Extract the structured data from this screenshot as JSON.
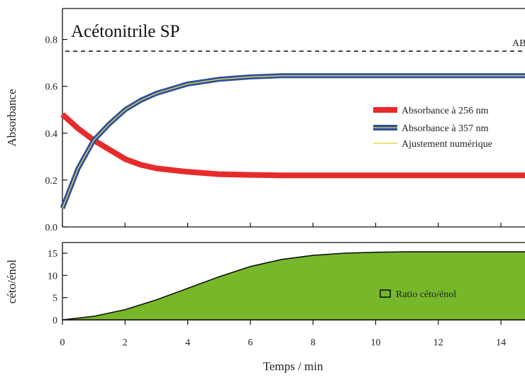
{
  "colors": {
    "red_series": "#e52b2b",
    "blue_series": "#2c4f9e",
    "fit_line": "#e8d84a",
    "area_fill": "#77b82a",
    "axis": "#111111"
  },
  "chart_data": [
    {
      "type": "line",
      "title": "Acétonitrile SP",
      "xlabel": "Temps / min",
      "ylabel": "Absorbance",
      "xlim": [
        0,
        15
      ],
      "ylim": [
        0,
        0.9
      ],
      "x_ticks": [
        "0",
        "2",
        "4",
        "6",
        "8",
        "10",
        "12",
        "14"
      ],
      "y_ticks": [
        "0.0",
        "0.2",
        "0.4",
        "0.6",
        "0.8"
      ],
      "reference_line": {
        "y": 0.75,
        "style": "dashed",
        "label": "AB"
      },
      "legend_position": "right",
      "series": [
        {
          "name": "Absorbance à 256 nm",
          "x": [
            0,
            0.5,
            1,
            1.5,
            2,
            2.5,
            3,
            4,
            5,
            6,
            7,
            8,
            9,
            10,
            11,
            12,
            13,
            14,
            15
          ],
          "values": [
            0.48,
            0.42,
            0.37,
            0.33,
            0.29,
            0.265,
            0.25,
            0.235,
            0.225,
            0.222,
            0.22,
            0.22,
            0.22,
            0.22,
            0.22,
            0.22,
            0.22,
            0.22,
            0.22
          ]
        },
        {
          "name": "Absorbance à 357 nm",
          "x": [
            0,
            0.5,
            1,
            1.5,
            2,
            2.5,
            3,
            4,
            5,
            6,
            7,
            8,
            9,
            10,
            11,
            12,
            13,
            14,
            15
          ],
          "values": [
            0.08,
            0.25,
            0.37,
            0.44,
            0.5,
            0.54,
            0.57,
            0.61,
            0.63,
            0.64,
            0.645,
            0.645,
            0.645,
            0.645,
            0.645,
            0.645,
            0.645,
            0.645,
            0.645
          ]
        },
        {
          "name": "Ajustement numérique",
          "x": [
            0,
            0.5,
            1,
            1.5,
            2,
            2.5,
            3,
            4,
            5,
            6,
            7,
            8,
            9,
            10,
            11,
            12,
            13,
            14,
            15
          ],
          "values": [
            0.08,
            0.25,
            0.37,
            0.44,
            0.5,
            0.54,
            0.57,
            0.61,
            0.63,
            0.64,
            0.645,
            0.645,
            0.645,
            0.645,
            0.645,
            0.645,
            0.645,
            0.645,
            0.645
          ]
        }
      ]
    },
    {
      "type": "area",
      "xlabel": "Temps / min",
      "ylabel": "céto/énol",
      "xlim": [
        0,
        15
      ],
      "ylim": [
        0,
        18
      ],
      "x_ticks": [
        "0",
        "2",
        "4",
        "6",
        "8",
        "10",
        "12",
        "14"
      ],
      "y_ticks": [
        "0",
        "5",
        "10",
        "15"
      ],
      "legend_position": "center-right",
      "series": [
        {
          "name": "Ratio céto/énol",
          "x": [
            0,
            1,
            2,
            3,
            4,
            5,
            6,
            7,
            8,
            9,
            10,
            11,
            12,
            13,
            14,
            15
          ],
          "values": [
            0,
            0.8,
            2.3,
            4.5,
            7.1,
            9.7,
            12,
            13.6,
            14.5,
            15,
            15.2,
            15.3,
            15.3,
            15.3,
            15.3,
            15.3
          ]
        }
      ]
    }
  ]
}
